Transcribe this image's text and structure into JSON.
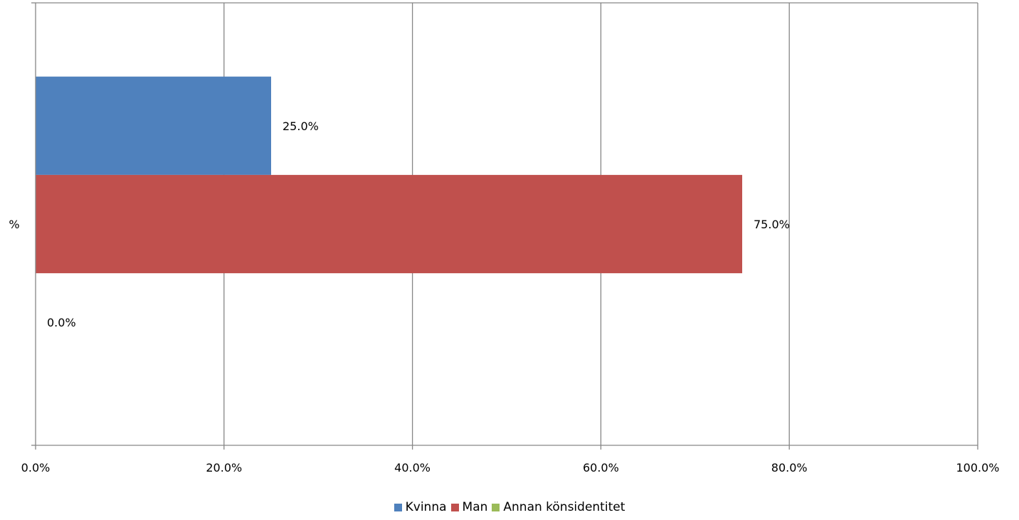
{
  "chart_data": {
    "type": "bar",
    "orientation": "horizontal",
    "categories": [
      "%"
    ],
    "series": [
      {
        "name": "Kvinna",
        "values": [
          25.0
        ],
        "label": "25.0%",
        "color": "#4f81bd"
      },
      {
        "name": "Man",
        "values": [
          75.0
        ],
        "label": "75.0%",
        "color": "#c0504d"
      },
      {
        "name": "Annan könsidentitet",
        "values": [
          0.0
        ],
        "label": "0.0%",
        "color": "#9bbb59"
      }
    ],
    "x_ticks": [
      "0.0%",
      "20.0%",
      "40.0%",
      "60.0%",
      "80.0%",
      "100.0%"
    ],
    "xlim": [
      0,
      100
    ],
    "grid": true,
    "legend_position": "bottom"
  }
}
